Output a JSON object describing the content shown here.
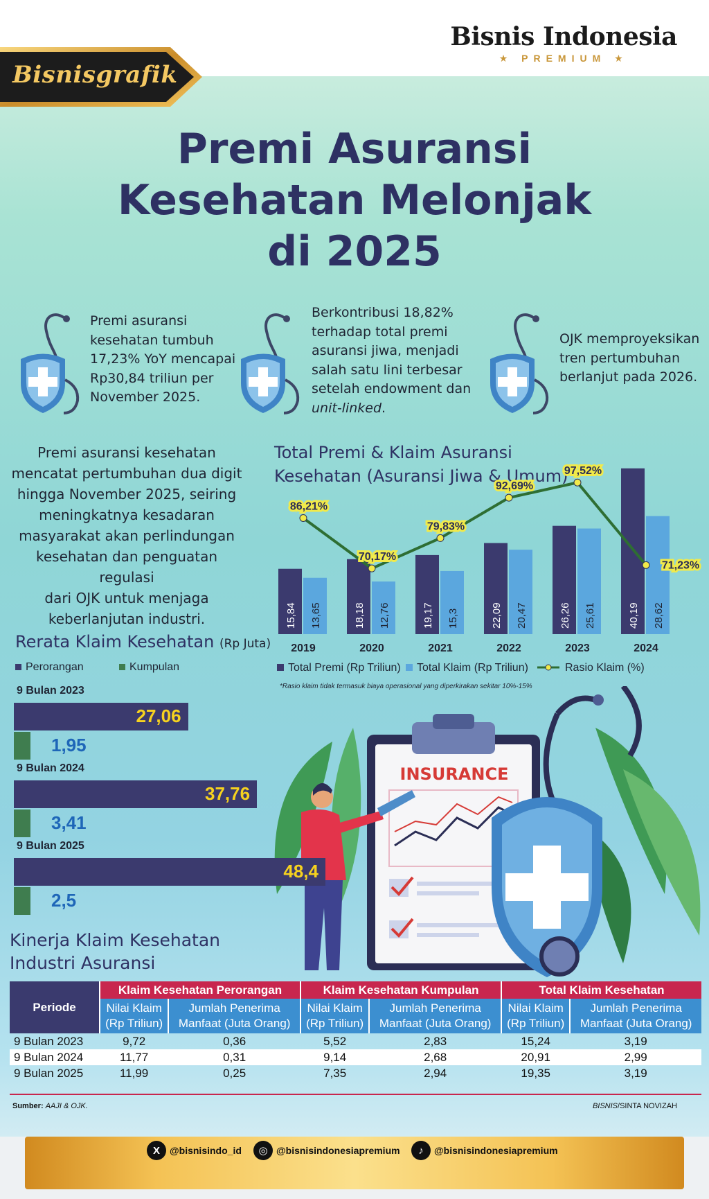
{
  "header": {
    "brand": "Bisnisgrafik",
    "publisher": "Bisnis Indonesia",
    "publisher_sub": "★ PREMIUM ★"
  },
  "title": {
    "line1": "Premi Asuransi",
    "line2": "Kesehatan Melonjak",
    "line3": "di 2025"
  },
  "highlights": [
    {
      "icon": "health-shield-stethoscope-icon",
      "lines": [
        "Premi asuransi",
        "kesehatan tumbuh",
        "17,23% YoY mencapai",
        "Rp30,84 triliun per",
        "November 2025."
      ]
    },
    {
      "icon": "health-shield-stethoscope-icon",
      "lines": [
        "Berkontribusi 18,82%",
        "terhadap total premi",
        "asuransi jiwa, menjadi",
        "salah satu lini terbesar",
        "setelah endowment dan"
      ],
      "last_italic": "unit-linked",
      "last_tail": "."
    },
    {
      "icon": "health-shield-stethoscope-icon",
      "lines": [
        "OJK memproyeksikan",
        "tren pertumbuhan",
        "berlanjut pada 2026."
      ]
    }
  ],
  "intro": {
    "lines": [
      "Premi asuransi kesehatan",
      "mencatat pertumbuhan dua digit",
      "hingga November 2025, seiring",
      "meningkatnya kesadaran",
      "masyarakat akan perlindungan",
      "kesehatan dan penguatan regulasi",
      "dari OJK untuk menjaga",
      "keberlanjutan industri."
    ]
  },
  "chart_data": [
    {
      "type": "bar",
      "title_line1": "Total Premi & Klaim Asuransi",
      "title_line2": "Kesehatan (Asuransi Jiwa & Umum)",
      "categories": [
        "2019",
        "2020",
        "2021",
        "2022",
        "2023",
        "2024"
      ],
      "series": [
        {
          "name": "Total Premi (Rp Triliun)",
          "color": "#3b3a6e",
          "values": [
            15.84,
            18.18,
            19.17,
            22.09,
            26.26,
            40.19
          ],
          "labels": [
            "15,84",
            "18,18",
            "19,17",
            "22,09",
            "26,26",
            "40,19"
          ]
        },
        {
          "name": "Total Klaim (Rp Triliun)",
          "color": "#5ba7de",
          "values": [
            13.65,
            12.76,
            15.3,
            20.47,
            25.61,
            28.62
          ],
          "labels": [
            "13,65",
            "12,76",
            "15,3",
            "20,47",
            "25,61",
            "28,62"
          ]
        }
      ],
      "line_series": {
        "name": "Rasio Klaim (%)",
        "color": "#2e6e33",
        "marker_color": "#f1ea4a",
        "values": [
          86.21,
          70.17,
          79.83,
          92.69,
          97.52,
          71.23
        ],
        "labels": [
          "86,21%",
          "70,17%",
          "79,83%",
          "92,69%",
          "97,52%",
          "71,23%"
        ]
      },
      "ylim": [
        0,
        42
      ],
      "note": "*Rasio klaim tidak termasuk biaya operasional yang diperkirakan sekitar 10%-15%"
    },
    {
      "type": "bar",
      "orientation": "horizontal",
      "title": "Rerata Klaim Kesehatan",
      "unit": "(Rp Juta)",
      "categories": [
        "9 Bulan 2023",
        "9 Bulan 2024",
        "9 Bulan 2025"
      ],
      "series": [
        {
          "name": "Perorangan",
          "color": "#3b3a6e",
          "values": [
            27.06,
            37.76,
            48.4
          ],
          "labels": [
            "27,06",
            "37,76",
            "48,4"
          ]
        },
        {
          "name": "Kumpulan",
          "color": "#3f7d4f",
          "values": [
            1.95,
            3.41,
            2.5
          ],
          "labels": [
            "1,95",
            "3,41",
            "2,5"
          ]
        }
      ]
    },
    {
      "type": "table",
      "title_line1": "Kinerja Klaim Kesehatan",
      "title_line2": "Industri Asuransi",
      "col_periode": "Periode",
      "groups": [
        "Klaim Kesehatan Perorangan",
        "Klaim Kesehatan Kumpulan",
        "Total Klaim Kesehatan"
      ],
      "sub_a": [
        "Nilai Klaim",
        "(Rp Triliun)"
      ],
      "sub_b": [
        "Jumlah Penerima",
        "Manfaat (Juta Orang)"
      ],
      "rows": [
        {
          "periode": "9 Bulan 2023",
          "cells": [
            "9,72",
            "0,36",
            "5,52",
            "2,83",
            "15,24",
            "3,19"
          ]
        },
        {
          "periode": "9 Bulan 2024",
          "cells": [
            "11,77",
            "0,31",
            "9,14",
            "2,68",
            "20,91",
            "2,99"
          ]
        },
        {
          "periode": "9 Bulan 2025",
          "cells": [
            "11,99",
            "0,25",
            "7,35",
            "2,94",
            "19,35",
            "3,19"
          ]
        }
      ]
    }
  ],
  "illustration": {
    "board_label": "INSURANCE"
  },
  "source": {
    "label": "Sumber:",
    "value": "AAJI & OJK."
  },
  "credit": {
    "a": "BISNIS",
    "b": "/SINTA NOVIZAH"
  },
  "social": [
    {
      "icon": "x-icon",
      "glyph": "X",
      "handle": "@bisnisindo_id"
    },
    {
      "icon": "instagram-icon",
      "glyph": "◎",
      "handle": "@bisnisindonesiapremium"
    },
    {
      "icon": "tiktok-icon",
      "glyph": "♪",
      "handle": "@bisnisindonesiapremium"
    }
  ]
}
